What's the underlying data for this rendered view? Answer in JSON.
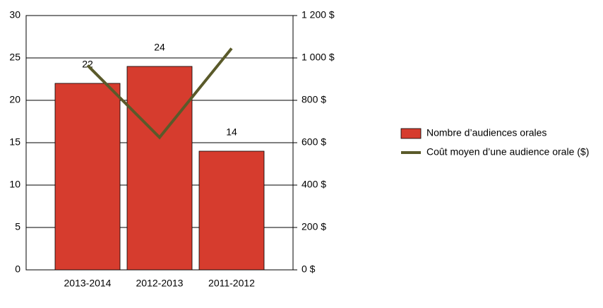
{
  "chart_data": {
    "type": "bar",
    "categories": [
      "2013-2014",
      "2012-2013",
      "2011-2012"
    ],
    "series": [
      {
        "name": "Nombre d’audiences orales",
        "type": "bar",
        "color": "#d63c2e",
        "values": [
          22,
          24,
          14
        ]
      },
      {
        "name": "Coût moyen d’une audience orale ($)",
        "type": "line",
        "axis": "y2",
        "color": "#5a5a2a",
        "values": [
          965,
          625,
          1045
        ]
      }
    ],
    "ylim": [
      0,
      30
    ],
    "yticks": [
      0,
      5,
      10,
      15,
      20,
      25,
      30
    ],
    "y2lim": [
      0,
      1200
    ],
    "y2ticks": [
      {
        "value": 0,
        "label": "0 $"
      },
      {
        "value": 200,
        "label": "200 $"
      },
      {
        "value": 400,
        "label": "400 $"
      },
      {
        "value": 600,
        "label": "600 $"
      },
      {
        "value": 800,
        "label": "800 $"
      },
      {
        "value": 1000,
        "label": "1 000 $"
      },
      {
        "value": 1200,
        "label": "1 200 $"
      }
    ],
    "grid": true
  }
}
